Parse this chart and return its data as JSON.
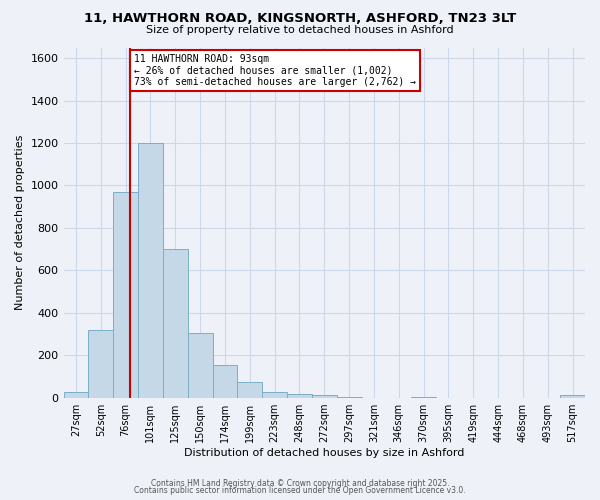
{
  "title_line1": "11, HAWTHORN ROAD, KINGSNORTH, ASHFORD, TN23 3LT",
  "title_line2": "Size of property relative to detached houses in Ashford",
  "xlabel": "Distribution of detached houses by size in Ashford",
  "ylabel": "Number of detached properties",
  "bar_labels": [
    "27sqm",
    "52sqm",
    "76sqm",
    "101sqm",
    "125sqm",
    "150sqm",
    "174sqm",
    "199sqm",
    "223sqm",
    "248sqm",
    "272sqm",
    "297sqm",
    "321sqm",
    "346sqm",
    "370sqm",
    "395sqm",
    "419sqm",
    "444sqm",
    "468sqm",
    "493sqm",
    "517sqm"
  ],
  "bar_values": [
    25,
    320,
    970,
    1200,
    700,
    305,
    155,
    75,
    25,
    15,
    10,
    5,
    0,
    0,
    5,
    0,
    0,
    0,
    0,
    0,
    10
  ],
  "bar_color": "#c5d8e8",
  "bar_edge_color": "#7baec8",
  "marker_label": "11 HAWTHORN ROAD: 93sqm",
  "annotation_line2": "← 26% of detached houses are smaller (1,002)",
  "annotation_line3": "73% of semi-detached houses are larger (2,762) →",
  "annotation_box_color": "#ffffff",
  "annotation_box_edge_color": "#cc0000",
  "marker_line_color": "#cc0000",
  "ylim": [
    0,
    1650
  ],
  "yticks": [
    0,
    200,
    400,
    600,
    800,
    1000,
    1200,
    1400,
    1600
  ],
  "grid_color": "#ccd8e8",
  "bg_color": "#eef2f8",
  "footnote1": "Contains HM Land Registry data © Crown copyright and database right 2025.",
  "footnote2": "Contains public sector information licensed under the Open Government Licence v3.0."
}
